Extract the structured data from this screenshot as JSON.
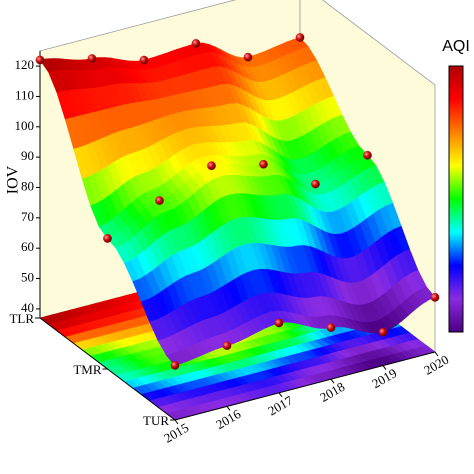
{
  "chart_data": {
    "type": "surface3d",
    "z_label": "IOV",
    "colorbar_title": "AQI",
    "categories": [
      "TUR",
      "TMR",
      "TLR"
    ],
    "x": [
      2015,
      2016,
      2017,
      2018,
      2019,
      2020
    ],
    "z": [
      [
        55,
        57,
        60,
        54,
        48,
        55
      ],
      [
        80,
        88,
        95,
        91,
        80,
        85
      ],
      [
        122,
        118,
        113,
        114,
        105,
        107
      ]
    ],
    "xlim": [
      2015,
      2020
    ],
    "xticks": [
      2015,
      2016,
      2017,
      2018,
      2019,
      2020
    ],
    "zlim": [
      37,
      125
    ],
    "zticks": [
      40,
      50,
      60,
      70,
      80,
      90,
      100,
      110,
      120
    ],
    "colormap": [
      "#4b0082",
      "#8a2be2",
      "#0000ff",
      "#00ffff",
      "#00ff00",
      "#ffff00",
      "#ff8000",
      "#ff0000",
      "#b00000"
    ],
    "marker_color": "#c00000",
    "floor_projection": true
  }
}
